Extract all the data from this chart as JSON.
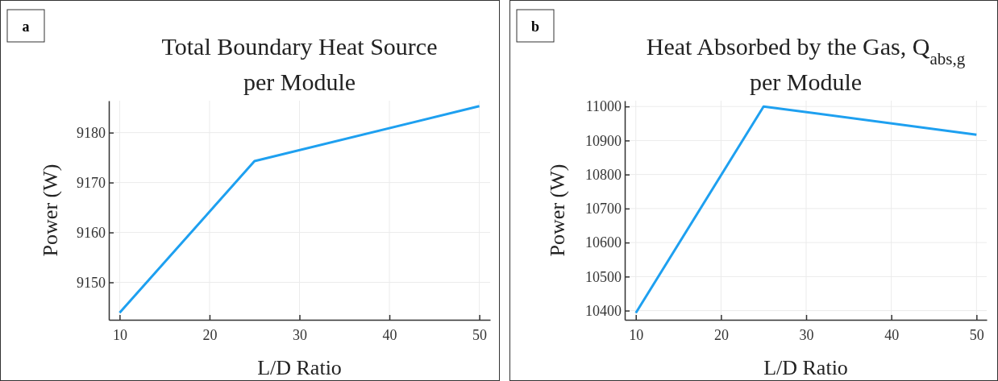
{
  "chart_data": [
    {
      "type": "line",
      "title": "Total Boundary Heat Source\nper Module",
      "xlabel": "L/D Ratio",
      "ylabel": "Power (W)",
      "annotations": [
        "a"
      ],
      "x": [
        10,
        25,
        50
      ],
      "series": [
        {
          "color": "#1ea0f0",
          "values": [
            9143.9,
            9174.3,
            9185.3
          ]
        }
      ],
      "xlim": [
        8.8,
        51.2
      ],
      "xticks": [
        10,
        20,
        30,
        40,
        50
      ],
      "ylim": [
        9142.5,
        9186.4
      ],
      "yticks": [
        9150,
        9160,
        9170,
        9180
      ],
      "grid": true,
      "marker": "none",
      "line_style": "solid"
    },
    {
      "type": "line",
      "title": "Heat Absorbed by the Gas,  Q$_{abs,g}$\nper Module",
      "xlabel": "L/D Ratio",
      "ylabel": "Power (W)",
      "annotations": [
        "b"
      ],
      "x": [
        10,
        25,
        50
      ],
      "series": [
        {
          "color": "#1ea0f0",
          "values": [
            10393,
            11000,
            10917
          ]
        }
      ],
      "xlim": [
        8.7,
        51.2
      ],
      "xticks": [
        10,
        20,
        30,
        40,
        50
      ],
      "ylim": [
        10373,
        11017
      ],
      "yticks": [
        10400,
        10500,
        10600,
        10700,
        10800,
        10900,
        11000
      ],
      "grid": true,
      "marker": "none",
      "line_style": "solid"
    }
  ]
}
